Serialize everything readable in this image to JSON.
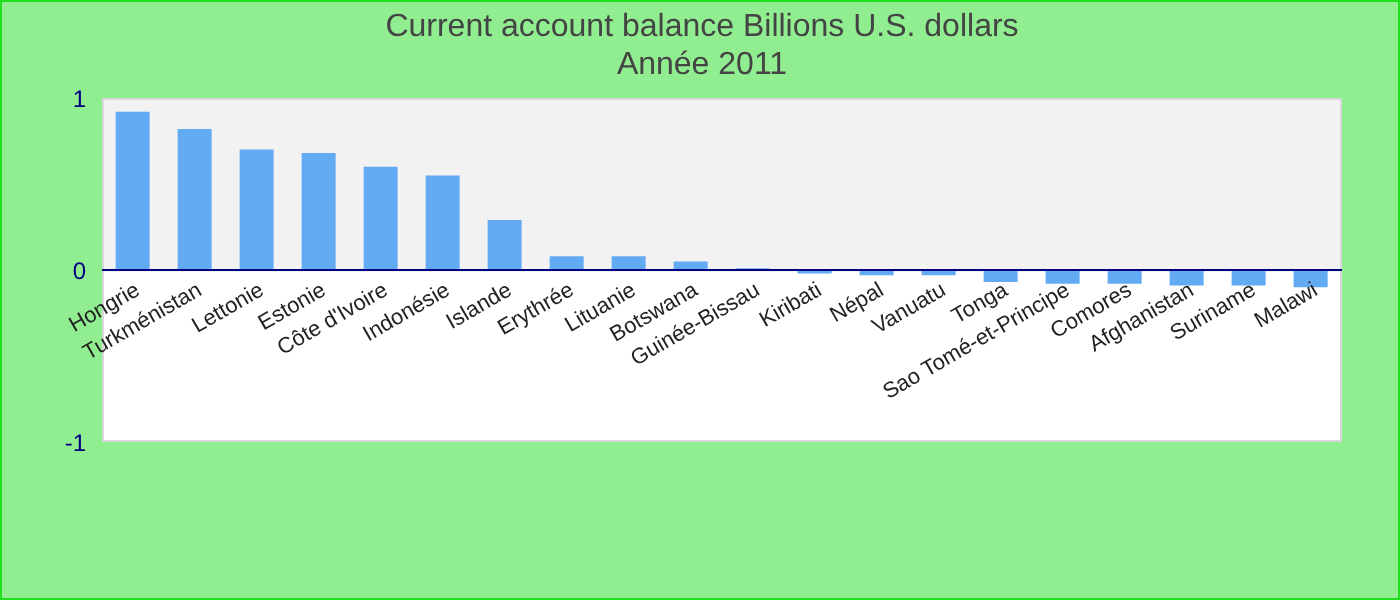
{
  "chart_data": {
    "type": "bar",
    "title": "Current account balance Billions U.S. dollars",
    "subtitle": "Année 2011",
    "categories": [
      "Hongrie",
      "Turkménistan",
      "Lettonie",
      "Estonie",
      "Côte d'Ivoire",
      "Indonésie",
      "Islande",
      "Erythrée",
      "Lituanie",
      "Botswana",
      "Guinée-Bissau",
      "Kiribati",
      "Népal",
      "Vanuatu",
      "Tonga",
      "Sao Tomé-et-Principe",
      "Comores",
      "Afghanistan",
      "Suriname",
      "Malawi"
    ],
    "values": [
      0.92,
      0.82,
      0.7,
      0.68,
      0.6,
      0.55,
      0.29,
      0.08,
      0.08,
      0.05,
      0.01,
      -0.02,
      -0.03,
      -0.03,
      -0.07,
      -0.08,
      -0.08,
      -0.09,
      -0.09,
      -0.1
    ],
    "color": "#62aaf2",
    "ylim": [
      -1,
      1
    ],
    "yticks": [
      -1,
      0,
      1
    ]
  }
}
